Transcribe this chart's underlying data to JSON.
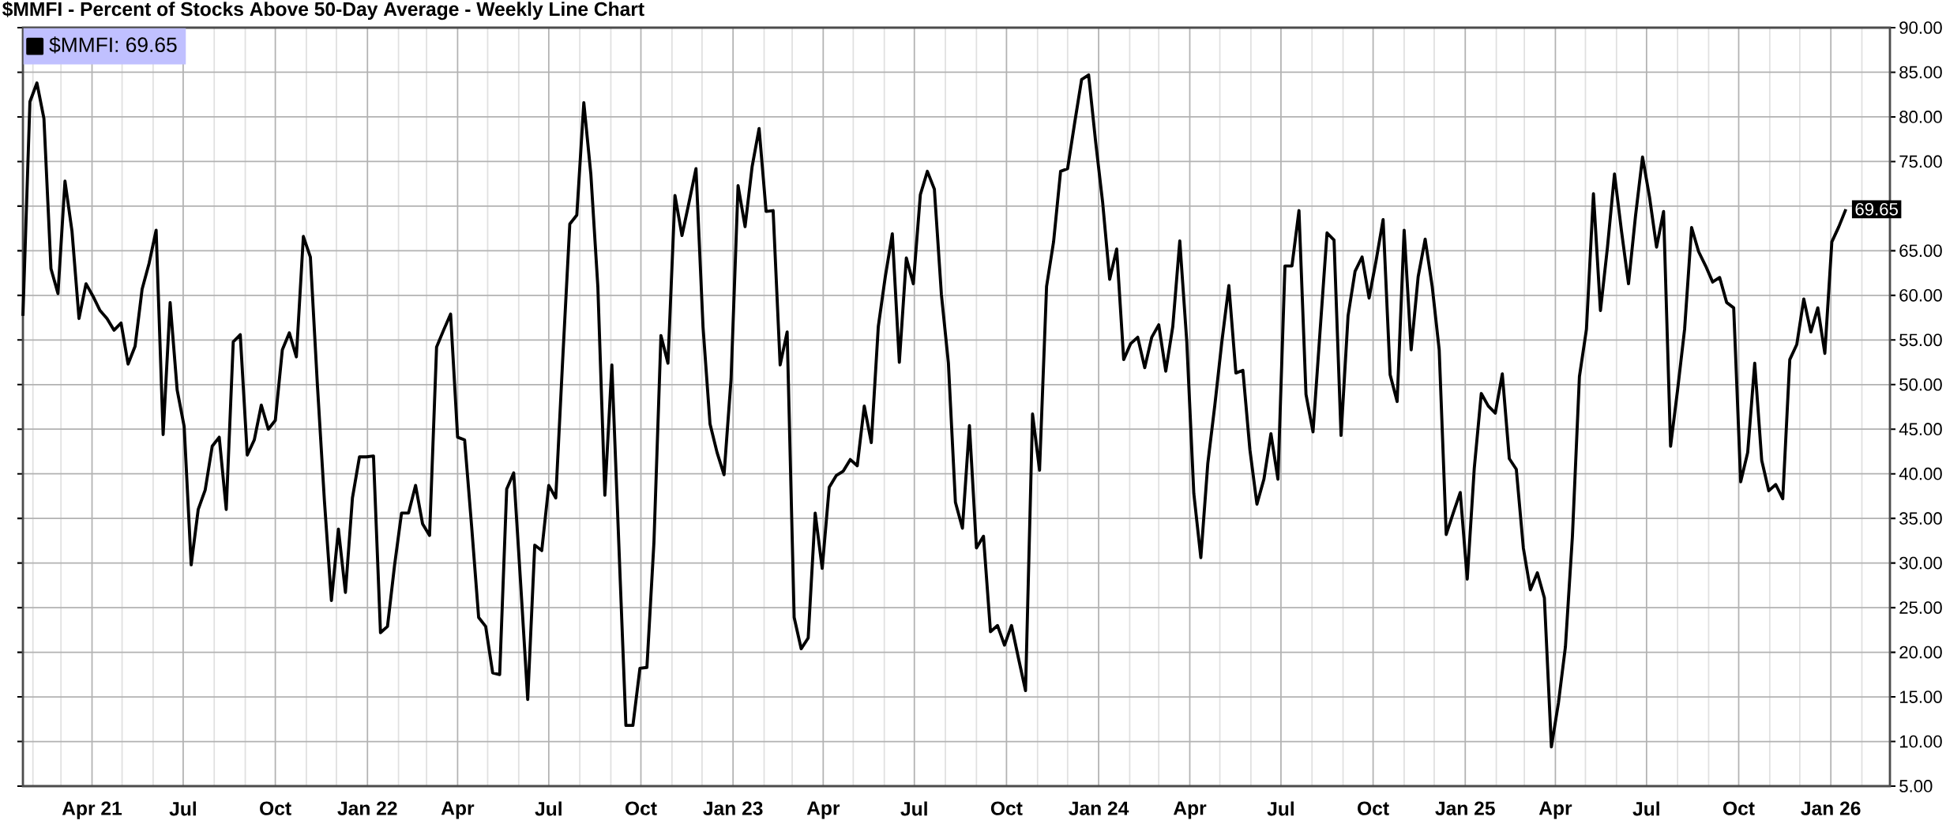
{
  "chart_data": {
    "type": "line",
    "title": "$MMFI - Percent of Stocks Above 50-Day Average - Weekly Line Chart",
    "x": [
      "2021-01-22",
      "2021-01-29",
      "2021-02-05",
      "2021-02-12",
      "2021-02-19",
      "2021-02-26",
      "2021-03-05",
      "2021-03-12",
      "2021-03-19",
      "2021-03-26",
      "2021-04-02",
      "2021-04-09",
      "2021-04-16",
      "2021-04-23",
      "2021-04-30",
      "2021-05-07",
      "2021-05-14",
      "2021-05-21",
      "2021-05-28",
      "2021-06-04",
      "2021-06-11",
      "2021-06-18",
      "2021-06-25",
      "2021-07-02",
      "2021-07-09",
      "2021-07-16",
      "2021-07-23",
      "2021-07-30",
      "2021-08-06",
      "2021-08-13",
      "2021-08-20",
      "2021-08-27",
      "2021-09-03",
      "2021-09-10",
      "2021-09-17",
      "2021-09-24",
      "2021-10-01",
      "2021-10-08",
      "2021-10-15",
      "2021-10-22",
      "2021-10-29",
      "2021-11-05",
      "2021-11-12",
      "2021-11-19",
      "2021-11-26",
      "2021-12-03",
      "2021-12-10",
      "2021-12-17",
      "2021-12-24",
      "2021-12-31",
      "2022-01-07",
      "2022-01-14",
      "2022-01-21",
      "2022-01-28",
      "2022-02-04",
      "2022-02-11",
      "2022-02-18",
      "2022-02-25",
      "2022-03-04",
      "2022-03-11",
      "2022-03-18",
      "2022-03-25",
      "2022-04-01",
      "2022-04-08",
      "2022-04-15",
      "2022-04-22",
      "2022-04-29",
      "2022-05-06",
      "2022-05-13",
      "2022-05-20",
      "2022-05-27",
      "2022-06-03",
      "2022-06-10",
      "2022-06-17",
      "2022-06-24",
      "2022-07-01",
      "2022-07-08",
      "2022-07-15",
      "2022-07-22",
      "2022-07-29",
      "2022-08-05",
      "2022-08-12",
      "2022-08-19",
      "2022-08-26",
      "2022-09-02",
      "2022-09-09",
      "2022-09-16",
      "2022-09-23",
      "2022-09-30",
      "2022-10-07",
      "2022-10-14",
      "2022-10-21",
      "2022-10-28",
      "2022-11-04",
      "2022-11-11",
      "2022-11-18",
      "2022-11-25",
      "2022-12-02",
      "2022-12-09",
      "2022-12-16",
      "2022-12-23",
      "2022-12-30",
      "2023-01-06",
      "2023-01-13",
      "2023-01-20",
      "2023-01-27",
      "2023-02-03",
      "2023-02-10",
      "2023-02-17",
      "2023-02-24",
      "2023-03-03",
      "2023-03-10",
      "2023-03-17",
      "2023-03-24",
      "2023-03-31",
      "2023-04-07",
      "2023-04-14",
      "2023-04-21",
      "2023-04-28",
      "2023-05-05",
      "2023-05-12",
      "2023-05-19",
      "2023-05-26",
      "2023-06-02",
      "2023-06-09",
      "2023-06-16",
      "2023-06-23",
      "2023-06-30",
      "2023-07-07",
      "2023-07-14",
      "2023-07-21",
      "2023-07-28",
      "2023-08-04",
      "2023-08-11",
      "2023-08-18",
      "2023-08-25",
      "2023-09-01",
      "2023-09-08",
      "2023-09-15",
      "2023-09-22",
      "2023-09-29",
      "2023-10-06",
      "2023-10-13",
      "2023-10-20",
      "2023-10-27",
      "2023-11-03",
      "2023-11-10",
      "2023-11-17",
      "2023-11-24",
      "2023-12-01",
      "2023-12-08",
      "2023-12-15",
      "2023-12-22",
      "2023-12-29",
      "2024-01-05",
      "2024-01-12",
      "2024-01-19",
      "2024-01-26",
      "2024-02-02",
      "2024-02-09",
      "2024-02-16",
      "2024-02-23",
      "2024-03-01",
      "2024-03-08",
      "2024-03-15",
      "2024-03-22",
      "2024-03-29",
      "2024-04-05",
      "2024-04-12",
      "2024-04-19",
      "2024-04-26",
      "2024-05-03",
      "2024-05-10",
      "2024-05-17",
      "2024-05-24",
      "2024-05-31",
      "2024-06-07",
      "2024-06-14",
      "2024-06-21",
      "2024-06-28",
      "2024-07-05",
      "2024-07-12",
      "2024-07-19",
      "2024-07-26",
      "2024-08-02",
      "2024-08-09",
      "2024-08-16",
      "2024-08-23",
      "2024-08-30",
      "2024-09-06",
      "2024-09-13",
      "2024-09-20",
      "2024-09-27",
      "2024-10-04",
      "2024-10-11",
      "2024-10-18",
      "2024-10-25",
      "2024-11-01",
      "2024-11-08",
      "2024-11-15",
      "2024-11-22",
      "2024-11-29",
      "2024-12-06",
      "2024-12-13",
      "2024-12-20",
      "2024-12-27",
      "2025-01-03",
      "2025-01-10",
      "2025-01-17",
      "2025-01-24",
      "2025-01-31",
      "2025-02-07",
      "2025-02-14",
      "2025-02-21",
      "2025-02-28",
      "2025-03-07",
      "2025-03-14",
      "2025-03-21",
      "2025-03-28",
      "2025-04-04",
      "2025-04-11",
      "2025-04-18",
      "2025-04-25",
      "2025-05-02",
      "2025-05-09",
      "2025-05-16",
      "2025-05-23",
      "2025-05-30",
      "2025-06-06",
      "2025-06-13",
      "2025-06-20",
      "2025-06-27",
      "2025-07-04",
      "2025-07-11",
      "2025-07-18",
      "2025-07-25",
      "2025-08-01",
      "2025-08-08",
      "2025-08-15",
      "2025-08-22",
      "2025-08-29",
      "2025-09-05",
      "2025-09-12",
      "2025-09-19",
      "2025-09-26",
      "2025-10-03",
      "2025-10-10",
      "2025-10-17",
      "2025-10-24",
      "2025-10-31",
      "2025-11-07",
      "2025-11-14",
      "2025-11-21",
      "2025-11-28",
      "2025-12-05",
      "2025-12-12",
      "2025-12-19",
      "2025-12-26",
      "2026-01-02",
      "2026-01-09",
      "2026-01-16"
    ],
    "series": [
      {
        "name": "$MMFI: 69.65",
        "color": "#000000",
        "values": [
          57.7,
          81.7,
          83.8,
          79.8,
          63.0,
          60.2,
          72.8,
          67.2,
          57.4,
          61.3,
          59.9,
          58.3,
          57.4,
          56.1,
          56.9,
          52.3,
          54.3,
          60.7,
          63.6,
          67.3,
          44.4,
          59.2,
          49.4,
          45.3,
          29.8,
          36.0,
          38.2,
          43.1,
          44.1,
          36.0,
          54.8,
          55.6,
          42.1,
          43.8,
          47.7,
          45.0,
          46.0,
          53.9,
          55.8,
          53.1,
          66.6,
          64.3,
          50.0,
          37.0,
          25.8,
          33.8,
          26.7,
          37.3,
          41.9,
          41.9,
          42.0,
          22.2,
          22.9,
          29.7,
          35.6,
          35.6,
          38.7,
          34.4,
          33.1,
          54.2,
          56.1,
          57.9,
          44.1,
          43.8,
          34.1,
          23.9,
          22.9,
          17.7,
          17.5,
          38.3,
          40.1,
          27.6,
          14.7,
          32.0,
          31.4,
          38.7,
          37.3,
          53.0,
          68.0,
          69.0,
          81.6,
          73.6,
          61.0,
          37.6,
          52.2,
          32.0,
          11.8,
          11.8,
          18.2,
          18.3,
          32.3,
          55.5,
          52.4,
          71.2,
          66.7,
          70.4,
          74.2,
          56.5,
          45.6,
          42.4,
          39.9,
          50.6,
          72.3,
          67.7,
          74.4,
          78.7,
          69.4,
          69.5,
          52.2,
          55.9,
          23.9,
          20.4,
          21.6,
          35.6,
          29.4,
          38.5,
          39.8,
          40.3,
          41.6,
          40.9,
          47.6,
          43.5,
          56.5,
          62.1,
          66.9,
          52.5,
          64.2,
          61.3,
          71.3,
          73.9,
          71.9,
          60.1,
          52.4,
          36.8,
          33.9,
          45.4,
          31.7,
          33.0,
          22.3,
          23.0,
          20.8,
          23.0,
          19.3,
          15.7,
          46.7,
          40.4,
          61.0,
          66.0,
          73.9,
          74.2,
          79.3,
          84.2,
          84.7,
          77.2,
          70.4,
          61.8,
          65.2,
          52.8,
          54.6,
          55.3,
          51.9,
          55.3,
          56.7,
          51.5,
          56.5,
          66.1,
          54.8,
          37.8,
          30.6,
          41.2,
          47.7,
          54.8,
          61.1,
          51.3,
          51.6,
          42.7,
          36.6,
          39.4,
          44.5,
          39.4,
          63.3,
          63.3,
          69.5,
          48.9,
          44.7,
          55.9,
          67.0,
          66.2,
          44.3,
          57.7,
          62.7,
          64.3,
          59.7,
          63.9,
          68.5,
          51.1,
          48.1,
          67.3,
          53.9,
          62.1,
          66.3,
          61.0,
          53.9,
          33.2,
          35.6,
          37.9,
          28.2,
          40.6,
          49.0,
          47.6,
          46.8,
          51.2,
          41.7,
          40.5,
          31.7,
          27.0,
          28.9,
          26.1,
          9.4,
          14.3,
          20.6,
          33.0,
          50.9,
          56.2,
          71.4,
          58.3,
          65.4,
          73.6,
          67.2,
          61.3,
          68.9,
          75.5,
          71.0,
          65.4,
          69.4,
          43.1,
          49.4,
          56.2,
          67.6,
          64.9,
          63.3,
          61.5,
          62.0,
          59.2,
          58.6,
          39.1,
          42.4,
          52.4,
          41.5,
          38.1,
          38.8,
          37.2,
          52.8,
          54.5,
          59.6,
          55.9,
          58.6,
          53.5,
          66.0,
          67.7,
          69.65
        ]
      }
    ],
    "annotations": [
      {
        "text": "69.65",
        "x": "2026-01-16",
        "y": 69.65
      }
    ],
    "xlim": [
      "2021-01-22",
      "2026-03-01"
    ],
    "xticks": [
      {
        "value": "2021-02-01",
        "label": null
      },
      {
        "value": "2021-03-01",
        "label": null
      },
      {
        "value": "2021-04-01",
        "label": "Apr 21"
      },
      {
        "value": "2021-05-01",
        "label": null
      },
      {
        "value": "2021-06-01",
        "label": null
      },
      {
        "value": "2021-07-01",
        "label": "Jul"
      },
      {
        "value": "2021-08-01",
        "label": null
      },
      {
        "value": "2021-09-01",
        "label": null
      },
      {
        "value": "2021-10-01",
        "label": "Oct"
      },
      {
        "value": "2021-11-01",
        "label": null
      },
      {
        "value": "2021-12-01",
        "label": null
      },
      {
        "value": "2022-01-01",
        "label": "Jan 22"
      },
      {
        "value": "2022-02-01",
        "label": null
      },
      {
        "value": "2022-03-01",
        "label": null
      },
      {
        "value": "2022-04-01",
        "label": "Apr"
      },
      {
        "value": "2022-05-01",
        "label": null
      },
      {
        "value": "2022-06-01",
        "label": null
      },
      {
        "value": "2022-07-01",
        "label": "Jul"
      },
      {
        "value": "2022-08-01",
        "label": null
      },
      {
        "value": "2022-09-01",
        "label": null
      },
      {
        "value": "2022-10-01",
        "label": "Oct"
      },
      {
        "value": "2022-11-01",
        "label": null
      },
      {
        "value": "2022-12-01",
        "label": null
      },
      {
        "value": "2023-01-01",
        "label": "Jan 23"
      },
      {
        "value": "2023-02-01",
        "label": null
      },
      {
        "value": "2023-03-01",
        "label": null
      },
      {
        "value": "2023-04-01",
        "label": "Apr"
      },
      {
        "value": "2023-05-01",
        "label": null
      },
      {
        "value": "2023-06-01",
        "label": null
      },
      {
        "value": "2023-07-01",
        "label": "Jul"
      },
      {
        "value": "2023-08-01",
        "label": null
      },
      {
        "value": "2023-09-01",
        "label": null
      },
      {
        "value": "2023-10-01",
        "label": "Oct"
      },
      {
        "value": "2023-11-01",
        "label": null
      },
      {
        "value": "2023-12-01",
        "label": null
      },
      {
        "value": "2024-01-01",
        "label": "Jan 24"
      },
      {
        "value": "2024-02-01",
        "label": null
      },
      {
        "value": "2024-03-01",
        "label": null
      },
      {
        "value": "2024-04-01",
        "label": "Apr"
      },
      {
        "value": "2024-05-01",
        "label": null
      },
      {
        "value": "2024-06-01",
        "label": null
      },
      {
        "value": "2024-07-01",
        "label": "Jul"
      },
      {
        "value": "2024-08-01",
        "label": null
      },
      {
        "value": "2024-09-01",
        "label": null
      },
      {
        "value": "2024-10-01",
        "label": "Oct"
      },
      {
        "value": "2024-11-01",
        "label": null
      },
      {
        "value": "2024-12-01",
        "label": null
      },
      {
        "value": "2025-01-01",
        "label": "Jan 25"
      },
      {
        "value": "2025-02-01",
        "label": null
      },
      {
        "value": "2025-03-01",
        "label": null
      },
      {
        "value": "2025-04-01",
        "label": "Apr"
      },
      {
        "value": "2025-05-01",
        "label": null
      },
      {
        "value": "2025-06-01",
        "label": null
      },
      {
        "value": "2025-07-01",
        "label": "Jul"
      },
      {
        "value": "2025-08-01",
        "label": null
      },
      {
        "value": "2025-09-01",
        "label": null
      },
      {
        "value": "2025-10-01",
        "label": "Oct"
      },
      {
        "value": "2025-11-01",
        "label": null
      },
      {
        "value": "2025-12-01",
        "label": null
      },
      {
        "value": "2026-01-01",
        "label": "Jan 26"
      },
      {
        "value": "2026-02-01",
        "label": null
      }
    ],
    "ylim": [
      5,
      90
    ],
    "yticks": [
      {
        "value": 5,
        "label": "5.00"
      },
      {
        "value": 10,
        "label": "10.00"
      },
      {
        "value": 15,
        "label": "15.00"
      },
      {
        "value": 20,
        "label": "20.00"
      },
      {
        "value": 25,
        "label": "25.00"
      },
      {
        "value": 30,
        "label": "30.00"
      },
      {
        "value": 35,
        "label": "35.00"
      },
      {
        "value": 40,
        "label": "40.00"
      },
      {
        "value": 45,
        "label": "45.00"
      },
      {
        "value": 50,
        "label": "50.00"
      },
      {
        "value": 55,
        "label": "55.00"
      },
      {
        "value": 60,
        "label": "60.00"
      },
      {
        "value": 65,
        "label": "65.00"
      },
      {
        "value": 70,
        "label": null
      },
      {
        "value": 75,
        "label": "75.00"
      },
      {
        "value": 80,
        "label": "80.00"
      },
      {
        "value": 85,
        "label": "85.00"
      },
      {
        "value": 90,
        "label": "90.00"
      }
    ],
    "grid": true,
    "legend": "top left"
  }
}
